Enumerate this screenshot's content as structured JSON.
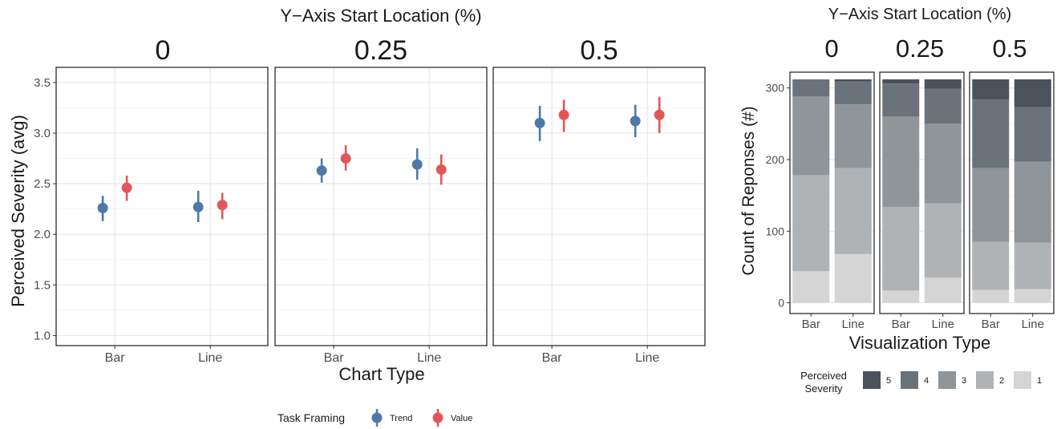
{
  "chart_data": [
    {
      "type": "scatter",
      "title": "Y−Axis Start Location (%)",
      "facets": [
        "0",
        "0.25",
        "0.5"
      ],
      "xlabel": "Chart Type",
      "ylabel": "Perceived Severity (avg)",
      "categories": [
        "Bar",
        "Line"
      ],
      "ylim": [
        0.9,
        3.65
      ],
      "yticks": [
        "1.0",
        "1.5",
        "2.0",
        "2.5",
        "3.0",
        "3.5"
      ],
      "legend": {
        "title": "Task Framing",
        "position": "bottom"
      },
      "series": [
        {
          "name": "Trend",
          "color": "#4e79a7",
          "points": [
            {
              "facet": "0",
              "x": "Bar",
              "y": 2.26,
              "lo": 2.13,
              "hi": 2.38
            },
            {
              "facet": "0",
              "x": "Line",
              "y": 2.27,
              "lo": 2.12,
              "hi": 2.43
            },
            {
              "facet": "0.25",
              "x": "Bar",
              "y": 2.63,
              "lo": 2.51,
              "hi": 2.75
            },
            {
              "facet": "0.25",
              "x": "Line",
              "y": 2.69,
              "lo": 2.54,
              "hi": 2.85
            },
            {
              "facet": "0.5",
              "x": "Bar",
              "y": 3.1,
              "lo": 2.92,
              "hi": 3.27
            },
            {
              "facet": "0.5",
              "x": "Line",
              "y": 3.12,
              "lo": 2.96,
              "hi": 3.28
            }
          ]
        },
        {
          "name": "Value",
          "color": "#e15759",
          "points": [
            {
              "facet": "0",
              "x": "Bar",
              "y": 2.46,
              "lo": 2.33,
              "hi": 2.58
            },
            {
              "facet": "0",
              "x": "Line",
              "y": 2.29,
              "lo": 2.15,
              "hi": 2.41
            },
            {
              "facet": "0.25",
              "x": "Bar",
              "y": 2.75,
              "lo": 2.63,
              "hi": 2.88
            },
            {
              "facet": "0.25",
              "x": "Line",
              "y": 2.64,
              "lo": 2.49,
              "hi": 2.79
            },
            {
              "facet": "0.5",
              "x": "Bar",
              "y": 3.18,
              "lo": 3.01,
              "hi": 3.33
            },
            {
              "facet": "0.5",
              "x": "Line",
              "y": 3.18,
              "lo": 3.0,
              "hi": 3.36
            }
          ]
        }
      ]
    },
    {
      "type": "bar",
      "stacked": true,
      "title": "Y−Axis Start Location (%)",
      "facets": [
        "0",
        "0.25",
        "0.5"
      ],
      "xlabel": "Visualization Type",
      "ylabel": "Count of Reponses (#)",
      "categories": [
        "Bar",
        "Line"
      ],
      "ylim": [
        -15,
        322
      ],
      "yticks": [
        "0",
        "100",
        "200",
        "300"
      ],
      "legend": {
        "title_lines": [
          "Perceived",
          "Severity"
        ],
        "position": "bottom",
        "items": [
          {
            "label": "5",
            "color": "#4a525c"
          },
          {
            "label": "4",
            "color": "#6a737b"
          },
          {
            "label": "3",
            "color": "#8f9598"
          },
          {
            "label": "2",
            "color": "#b0b3b5"
          },
          {
            "label": "1",
            "color": "#d5d5d5"
          }
        ]
      },
      "stack_order": [
        "1",
        "2",
        "3",
        "4",
        "5"
      ],
      "bars": [
        {
          "facet": "0",
          "x": "Bar",
          "counts": {
            "1": 44,
            "2": 134,
            "3": 110,
            "4": 24,
            "5": 0
          }
        },
        {
          "facet": "0",
          "x": "Line",
          "counts": {
            "1": 68,
            "2": 120,
            "3": 89,
            "4": 32,
            "5": 3
          }
        },
        {
          "facet": "0.25",
          "x": "Bar",
          "counts": {
            "1": 17,
            "2": 117,
            "3": 126,
            "4": 46,
            "5": 6
          }
        },
        {
          "facet": "0.25",
          "x": "Line",
          "counts": {
            "1": 35,
            "2": 104,
            "3": 111,
            "4": 49,
            "5": 13
          }
        },
        {
          "facet": "0.5",
          "x": "Bar",
          "counts": {
            "1": 18,
            "2": 67,
            "3": 103,
            "4": 96,
            "5": 28
          }
        },
        {
          "facet": "0.5",
          "x": "Line",
          "counts": {
            "1": 19,
            "2": 65,
            "3": 113,
            "4": 76,
            "5": 39
          }
        }
      ]
    }
  ]
}
